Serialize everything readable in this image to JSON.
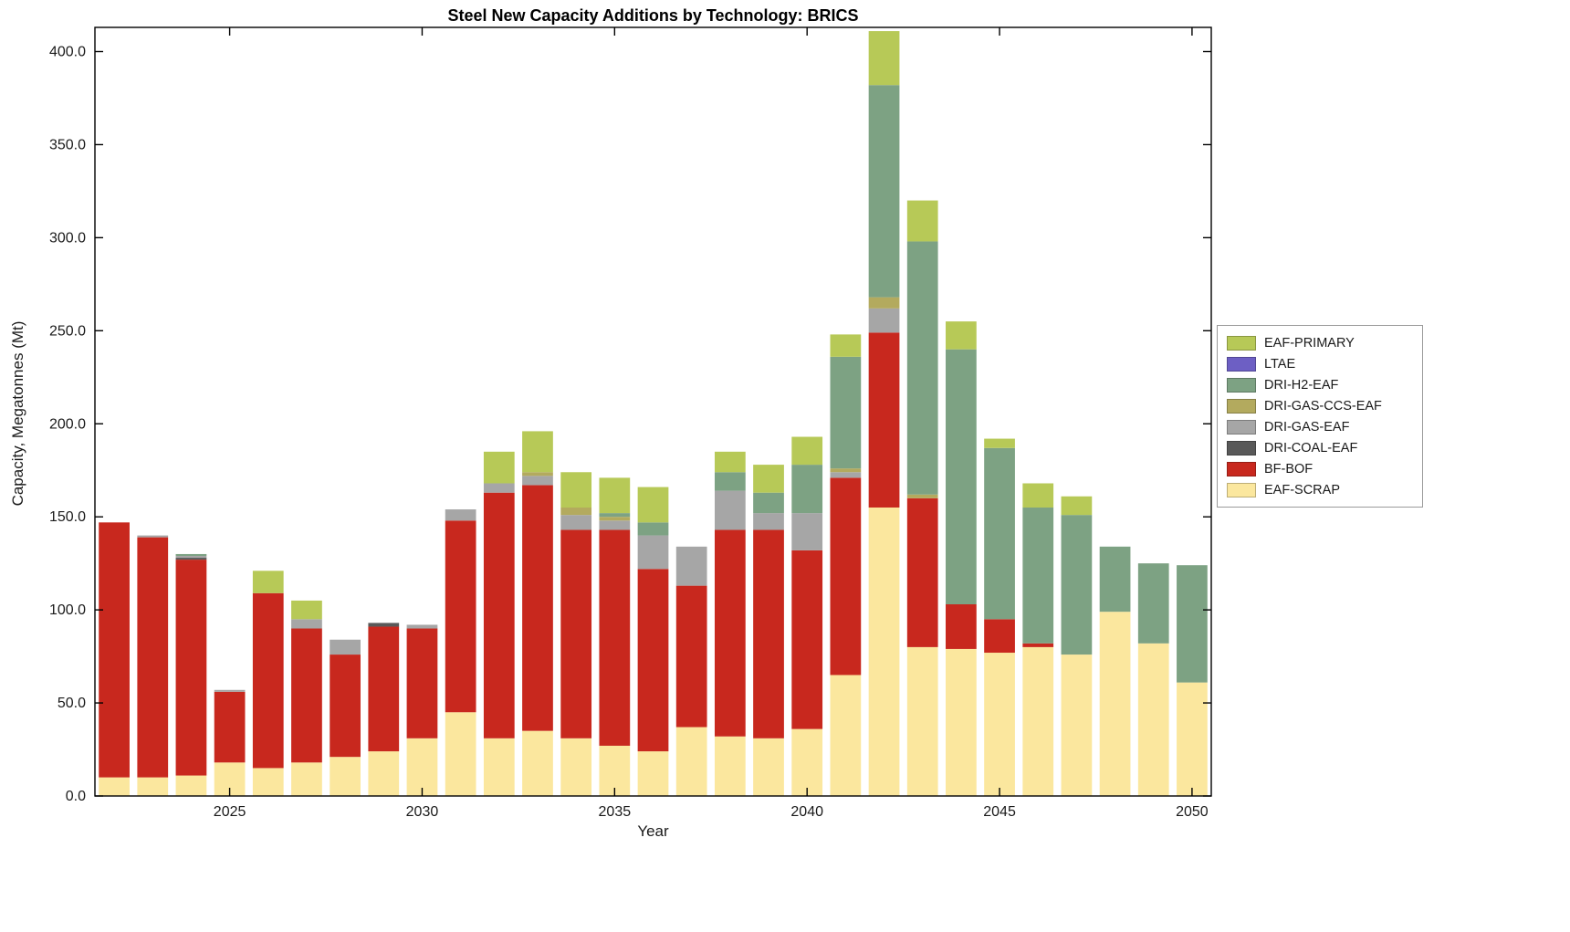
{
  "chart_data": {
    "type": "bar",
    "variant": "stacked",
    "title": "Steel New Capacity Additions by Technology: BRICS",
    "xlabel": "Year",
    "ylabel": "Capacity, Megatonnes (Mt)",
    "x": [
      2022,
      2023,
      2024,
      2025,
      2026,
      2027,
      2028,
      2029,
      2030,
      2031,
      2032,
      2033,
      2034,
      2035,
      2036,
      2037,
      2038,
      2039,
      2040,
      2041,
      2042,
      2043,
      2044,
      2045,
      2046,
      2047,
      2048,
      2049,
      2050
    ],
    "xticks": [
      2025,
      2030,
      2035,
      2040,
      2045,
      2050
    ],
    "xtick_labels": [
      "2025",
      "2030",
      "2035",
      "2040",
      "2045",
      "2050"
    ],
    "yticks": [
      0,
      50,
      100,
      150,
      200,
      250,
      300,
      350,
      400
    ],
    "ytick_labels": [
      "0.0",
      "50.0",
      "100.0",
      "150.0",
      "200.0",
      "250.0",
      "300.0",
      "350.0",
      "400.0"
    ],
    "ylim": [
      0,
      413
    ],
    "grid": false,
    "legend_position": "outside-right",
    "series": [
      {
        "name": "EAF-SCRAP",
        "color": "#fbe79e",
        "values": [
          10,
          10,
          11,
          18,
          15,
          18,
          21,
          24,
          31,
          45,
          31,
          35,
          31,
          27,
          24,
          37,
          32,
          31,
          36,
          65,
          155,
          80,
          79,
          77,
          80,
          76,
          99,
          82,
          61
        ]
      },
      {
        "name": "BF-BOF",
        "color": "#c8281e",
        "values": [
          137,
          129,
          116,
          38,
          94,
          72,
          55,
          67,
          59,
          103,
          132,
          132,
          112,
          116,
          98,
          76,
          111,
          112,
          96,
          106,
          94,
          80,
          24,
          18,
          2,
          0,
          0,
          0,
          0
        ]
      },
      {
        "name": "DRI-COAL-EAF",
        "color": "#595959",
        "values": [
          0,
          0,
          1,
          0,
          0,
          0,
          0,
          2,
          0,
          0,
          0,
          0,
          0,
          0,
          0,
          0,
          0,
          0,
          0,
          0,
          0,
          0,
          0,
          0,
          0,
          0,
          0,
          0,
          0
        ]
      },
      {
        "name": "DRI-GAS-EAF",
        "color": "#a6a6a6",
        "values": [
          0,
          1,
          1,
          1,
          0,
          5,
          8,
          0,
          2,
          6,
          5,
          5,
          8,
          5,
          18,
          21,
          21,
          9,
          20,
          3,
          13,
          0,
          0,
          0,
          0,
          0,
          0,
          0,
          0
        ]
      },
      {
        "name": "DRI-GAS-CCS-EAF",
        "color": "#b3aa5e",
        "values": [
          0,
          0,
          0,
          0,
          0,
          0,
          0,
          0,
          0,
          0,
          0,
          2,
          4,
          2,
          0,
          0,
          0,
          0,
          0,
          2,
          6,
          2,
          0,
          0,
          0,
          0,
          0,
          0,
          0
        ]
      },
      {
        "name": "DRI-H2-EAF",
        "color": "#7da283",
        "values": [
          0,
          0,
          1,
          0,
          0,
          0,
          0,
          0,
          0,
          0,
          0,
          0,
          0,
          2,
          7,
          0,
          10,
          11,
          26,
          60,
          114,
          136,
          137,
          92,
          73,
          75,
          35,
          43,
          63
        ]
      },
      {
        "name": "LTAE",
        "color": "#6d5fc4",
        "values": [
          0,
          0,
          0,
          0,
          0,
          0,
          0,
          0,
          0,
          0,
          0,
          0,
          0,
          0,
          0,
          0,
          0,
          0,
          0,
          0,
          0,
          0,
          0,
          0,
          0,
          0,
          0,
          0,
          0
        ]
      },
      {
        "name": "EAF-PRIMARY",
        "color": "#b7c957",
        "values": [
          0,
          0,
          0,
          0,
          12,
          10,
          0,
          0,
          0,
          0,
          17,
          22,
          19,
          19,
          19,
          0,
          11,
          15,
          15,
          12,
          29,
          22,
          15,
          5,
          13,
          10,
          0,
          0,
          0
        ]
      }
    ],
    "legend_order_top_to_bottom": [
      "EAF-PRIMARY",
      "LTAE",
      "DRI-H2-EAF",
      "DRI-GAS-CCS-EAF",
      "DRI-GAS-EAF",
      "DRI-COAL-EAF",
      "BF-BOF",
      "EAF-SCRAP"
    ]
  }
}
